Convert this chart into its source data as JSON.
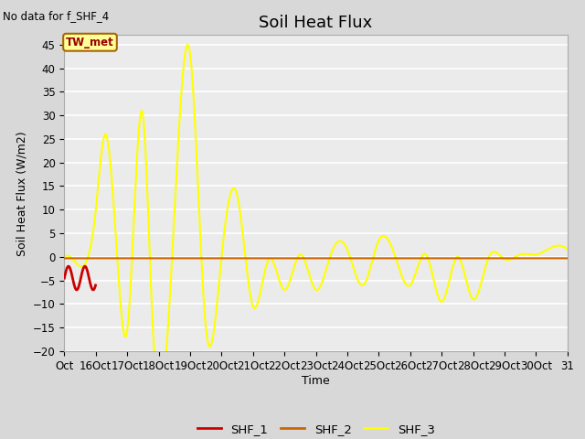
{
  "title": "Soil Heat Flux",
  "subtitle": "No data for f_SHF_4",
  "ylabel": "Soil Heat Flux (W/m2)",
  "xlabel": "Time",
  "ylim": [
    -20,
    47
  ],
  "yticks": [
    -20,
    -15,
    -10,
    -5,
    0,
    5,
    10,
    15,
    20,
    25,
    30,
    35,
    40,
    45
  ],
  "xtick_labels": [
    "Oct",
    "16Oct",
    "17Oct",
    "18Oct",
    "19Oct",
    "20Oct",
    "21Oct",
    "22Oct",
    "23Oct",
    "24Oct",
    "25Oct",
    "26Oct",
    "27Oct",
    "28Oct",
    "29Oct",
    "30Oct",
    "31"
  ],
  "legend_entries": [
    "SHF_1",
    "SHF_2",
    "SHF_3"
  ],
  "shf2_color": "#cc6600",
  "shf1_color": "#cc0000",
  "shf3_color": "#ffff00",
  "annotation_text": "TW_met",
  "bg_color": "#e8e8e8",
  "plot_bg": "#ebebeb",
  "grid_color": "#ffffff",
  "title_fontsize": 13,
  "label_fontsize": 9,
  "tick_fontsize": 8.5
}
